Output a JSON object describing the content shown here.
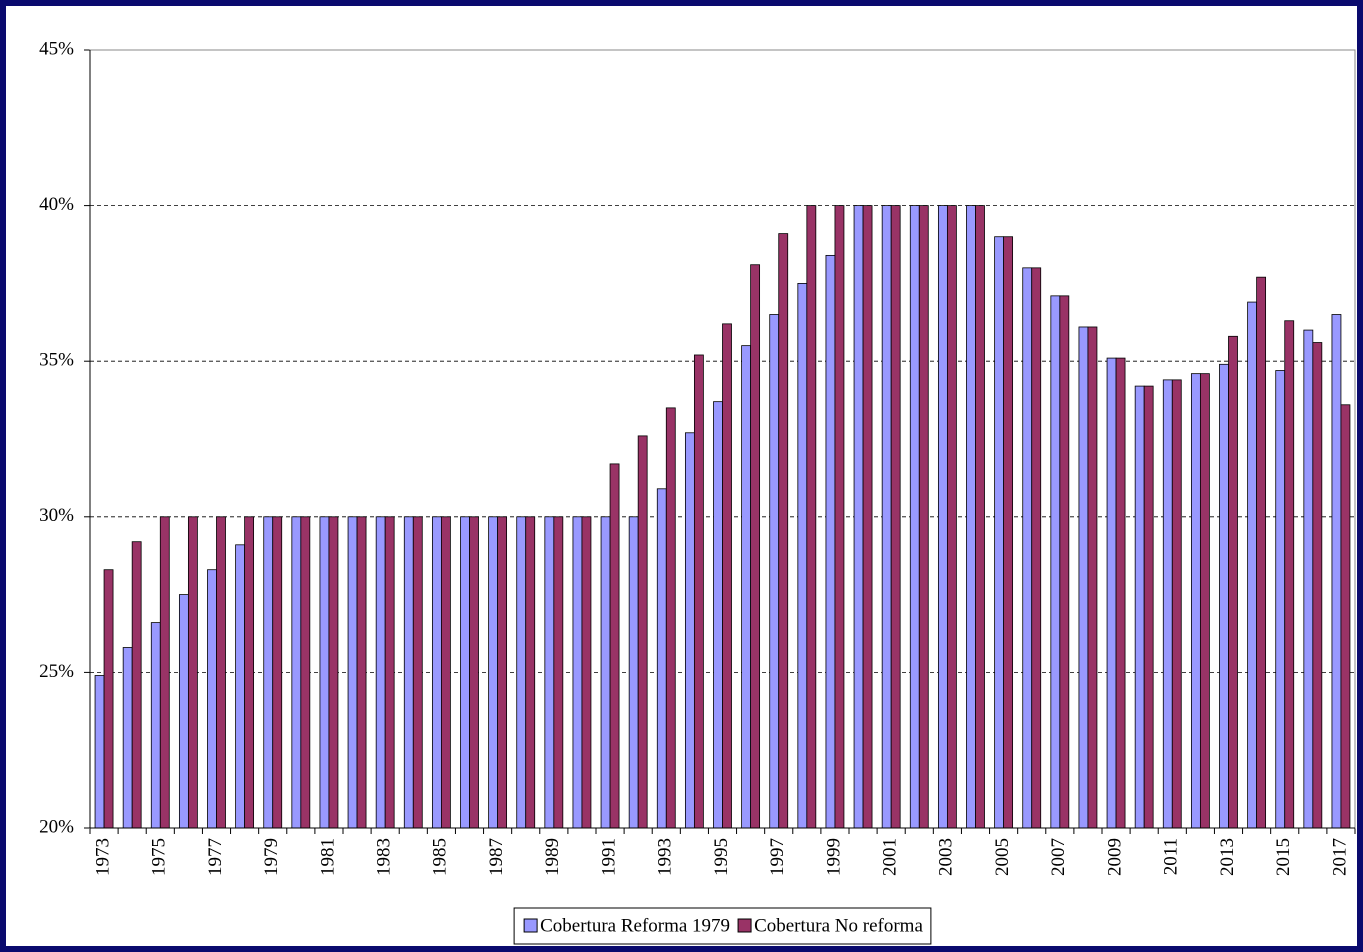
{
  "chart_data": {
    "type": "bar",
    "categories": [
      "1973",
      null,
      "1975",
      null,
      "1977",
      null,
      "1979",
      null,
      "1981",
      null,
      "1983",
      null,
      "1985",
      null,
      "1987",
      null,
      "1989",
      null,
      "1991",
      null,
      "1993",
      null,
      "1995",
      null,
      "1997",
      null,
      "1999",
      null,
      "2001",
      null,
      "2003",
      null,
      "2005",
      null,
      "2007",
      null,
      "2009",
      null,
      "2011",
      null,
      "2013",
      null,
      "2015",
      null,
      "2017"
    ],
    "series": [
      {
        "name": "Cobertura Reforma 1979",
        "color": "#9999ff",
        "values": [
          24.9,
          25.8,
          26.6,
          27.5,
          28.3,
          29.1,
          30,
          30,
          30,
          30,
          30,
          30,
          30,
          30,
          30,
          30,
          30,
          30,
          30,
          30,
          30.9,
          32.7,
          33.7,
          35.5,
          36.5,
          37.5,
          38.4,
          40,
          40,
          40,
          40,
          40,
          39,
          38,
          37.1,
          36.1,
          35.1,
          34.2,
          34.4,
          34.6,
          34.9,
          36.9,
          34.7,
          36,
          36.5
        ]
      },
      {
        "name": "Cobertura No reforma",
        "color": "#993366",
        "values": [
          28.3,
          29.2,
          30,
          30,
          30,
          30,
          30,
          30,
          30,
          30,
          30,
          30,
          30,
          30,
          30,
          30,
          30,
          30,
          31.7,
          32.6,
          33.5,
          35.2,
          36.2,
          38.1,
          39.1,
          40,
          40,
          40,
          40,
          40,
          40,
          40,
          39,
          38,
          37.1,
          36.1,
          35.1,
          34.2,
          34.4,
          34.6,
          35.8,
          37.7,
          36.3,
          35.6,
          33.6
        ]
      }
    ],
    "ylim": [
      20,
      45
    ],
    "yticks": [
      {
        "value": 20,
        "label": "20%"
      },
      {
        "value": 25,
        "label": "25%"
      },
      {
        "value": 30,
        "label": "30%"
      },
      {
        "value": 35,
        "label": "35%"
      },
      {
        "value": 40,
        "label": "40%"
      },
      {
        "value": 45,
        "label": "45%"
      }
    ],
    "grid": true,
    "legend": "bottom"
  }
}
